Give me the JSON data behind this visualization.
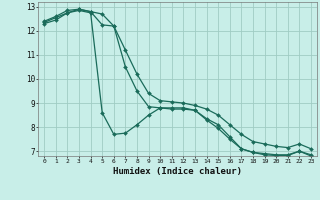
{
  "background_color": "#c8eee8",
  "grid_color": "#a0ccc4",
  "line_color": "#1a6b5a",
  "xlabel": "Humidex (Indice chaleur)",
  "xlim": [
    -0.5,
    23.5
  ],
  "ylim": [
    6.8,
    13.2
  ],
  "yticks": [
    7,
    8,
    9,
    10,
    11,
    12,
    13
  ],
  "xticks": [
    0,
    1,
    2,
    3,
    4,
    5,
    6,
    7,
    8,
    9,
    10,
    11,
    12,
    13,
    14,
    15,
    16,
    17,
    18,
    19,
    20,
    21,
    22,
    23
  ],
  "series": [
    {
      "x": [
        0,
        1,
        2,
        3,
        4,
        5,
        6,
        7,
        8,
        9,
        10,
        11,
        12,
        13,
        14,
        15,
        16,
        17,
        18,
        19,
        20,
        21,
        22,
        23
      ],
      "y": [
        12.4,
        12.6,
        12.85,
        12.9,
        12.8,
        12.7,
        12.2,
        11.2,
        10.2,
        9.4,
        9.1,
        9.05,
        9.0,
        8.9,
        8.75,
        8.5,
        8.1,
        7.7,
        7.4,
        7.3,
        7.2,
        7.15,
        7.3,
        7.1
      ]
    },
    {
      "x": [
        0,
        1,
        2,
        3,
        4,
        5,
        6,
        7,
        8,
        9,
        10,
        11,
        12,
        13,
        14,
        15,
        16,
        17,
        18,
        19,
        20,
        21,
        22,
        23
      ],
      "y": [
        12.35,
        12.55,
        12.75,
        12.9,
        12.8,
        12.25,
        12.2,
        10.5,
        9.5,
        8.85,
        8.8,
        8.75,
        8.75,
        8.7,
        8.35,
        8.1,
        7.6,
        7.1,
        6.95,
        6.9,
        6.85,
        6.85,
        7.0,
        6.85
      ]
    },
    {
      "x": [
        0,
        1,
        2,
        3,
        4,
        5,
        6,
        7,
        8,
        9,
        10,
        11,
        12,
        13,
        14,
        15,
        16,
        17,
        18,
        19,
        20,
        21,
        22,
        23
      ],
      "y": [
        12.3,
        12.45,
        12.75,
        12.85,
        12.75,
        8.6,
        7.7,
        7.75,
        8.1,
        8.5,
        8.8,
        8.8,
        8.8,
        8.7,
        8.3,
        7.95,
        7.5,
        7.1,
        6.95,
        6.85,
        6.82,
        6.82,
        7.0,
        6.8
      ]
    }
  ]
}
